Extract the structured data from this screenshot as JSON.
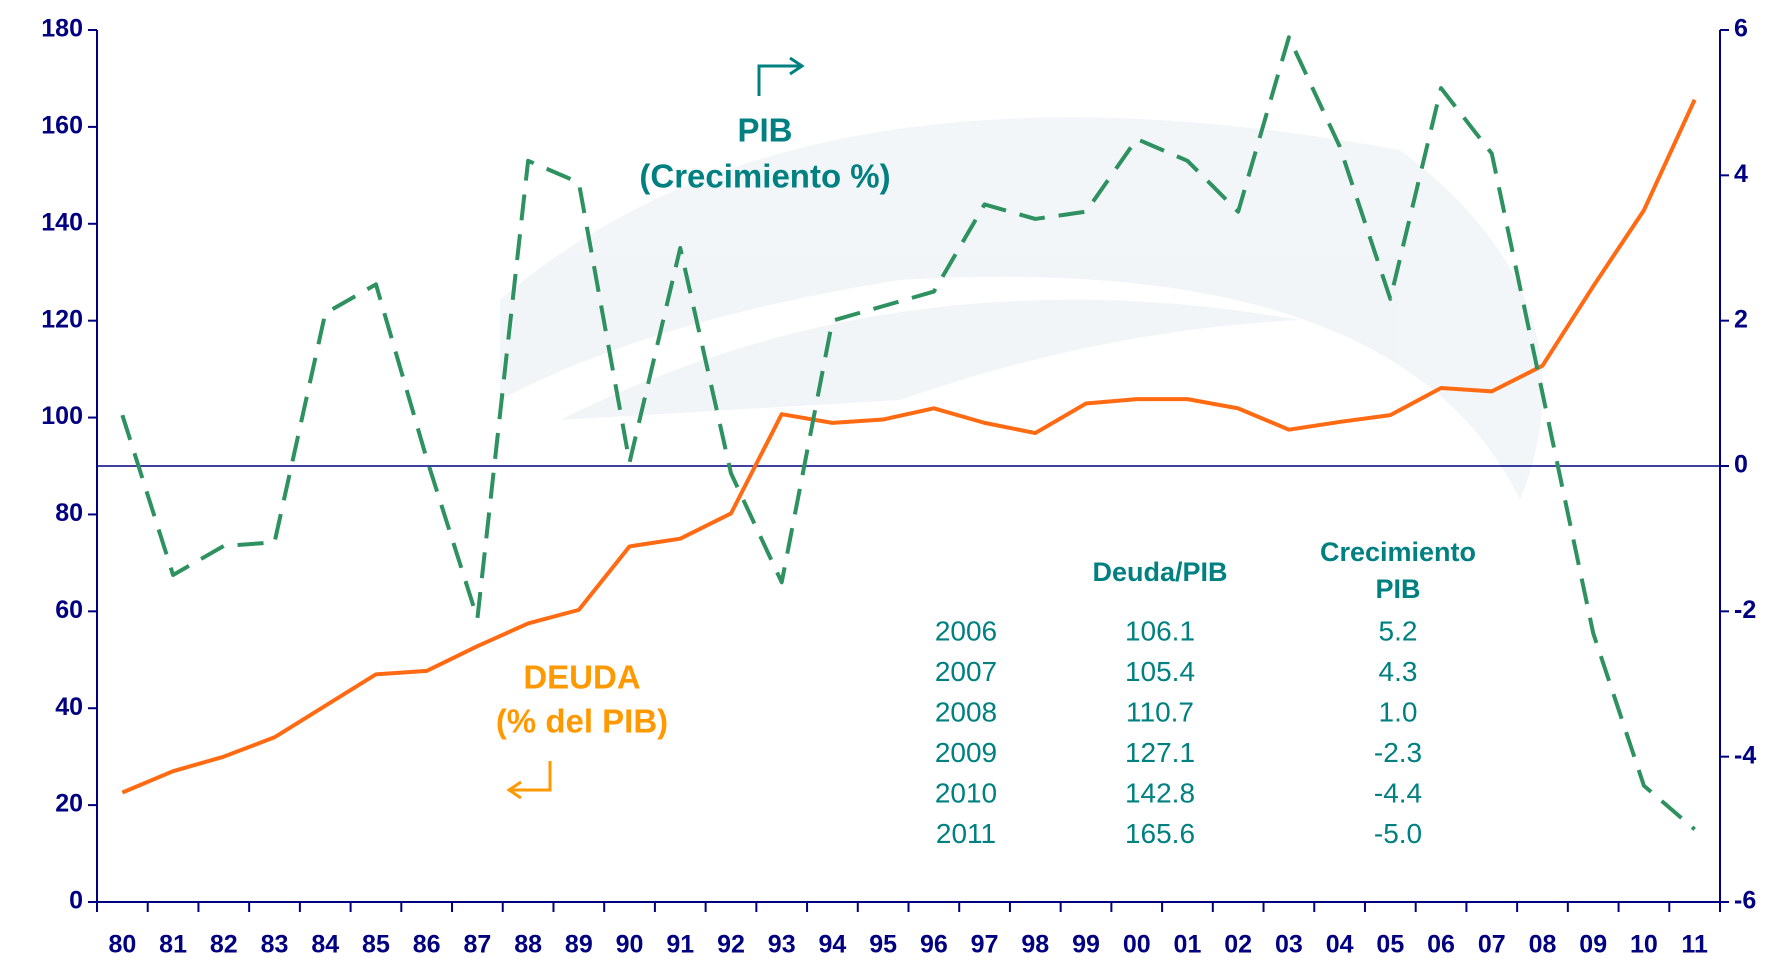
{
  "chart_data": {
    "type": "line",
    "categories": [
      "80",
      "81",
      "82",
      "83",
      "84",
      "85",
      "86",
      "87",
      "88",
      "89",
      "90",
      "91",
      "92",
      "93",
      "94",
      "95",
      "96",
      "97",
      "98",
      "99",
      "00",
      "01",
      "02",
      "03",
      "04",
      "05",
      "06",
      "07",
      "08",
      "09",
      "10",
      "11"
    ],
    "series": [
      {
        "name": "DEUDA",
        "color": "#ff6a13",
        "axis": "y",
        "values": [
          22.6,
          27,
          30,
          34,
          40.5,
          47,
          47.7,
          52.8,
          57.5,
          60.3,
          73.4,
          75,
          80.2,
          100.7,
          98.9,
          99.6,
          101.9,
          98.9,
          96.8,
          102.9,
          103.8,
          103.8,
          101.9,
          97.5,
          99.1,
          100.5,
          106.1,
          105.4,
          110.7,
          127.1,
          142.8,
          165.6
        ]
      },
      {
        "name": "PIB",
        "color": "#2e9160",
        "axis": "y2",
        "dashed": true,
        "values": [
          0.7,
          -1.5,
          -1.1,
          -1.05,
          2.1,
          2.5,
          0.1,
          -2.1,
          4.2,
          3.9,
          0.05,
          3.0,
          -0.1,
          -1.6,
          2.0,
          2.2,
          2.4,
          3.6,
          3.4,
          3.5,
          4.5,
          4.2,
          3.5,
          5.9,
          4.4,
          2.3,
          5.2,
          4.3,
          1.0,
          -2.3,
          -4.4,
          -5.0
        ]
      }
    ],
    "ylim": [
      0,
      180
    ],
    "yticks": [
      0,
      20,
      40,
      60,
      80,
      100,
      120,
      140,
      160,
      180
    ],
    "y2lim": [
      -6,
      6
    ],
    "y2ticks": [
      -6,
      -4,
      -2,
      0,
      2,
      4,
      6
    ],
    "zero_line_y2": 0,
    "annotations": {
      "pib": [
        "PIB",
        "(Crecimiento %)"
      ],
      "deuda": [
        "DEUDA",
        "(% del PIB)"
      ]
    },
    "table": {
      "headers": [
        "Deuda/PIB",
        [
          "Crecimiento",
          "PIB"
        ]
      ],
      "rows": [
        [
          "2006",
          "106.1",
          "5.2"
        ],
        [
          "2007",
          "105.4",
          "4.3"
        ],
        [
          "2008",
          "110.7",
          "1.0"
        ],
        [
          "2009",
          "127.1",
          "-2.3"
        ],
        [
          "2010",
          "142.8",
          "-4.4"
        ],
        [
          "2011",
          "165.6",
          "-5.0"
        ]
      ]
    }
  }
}
